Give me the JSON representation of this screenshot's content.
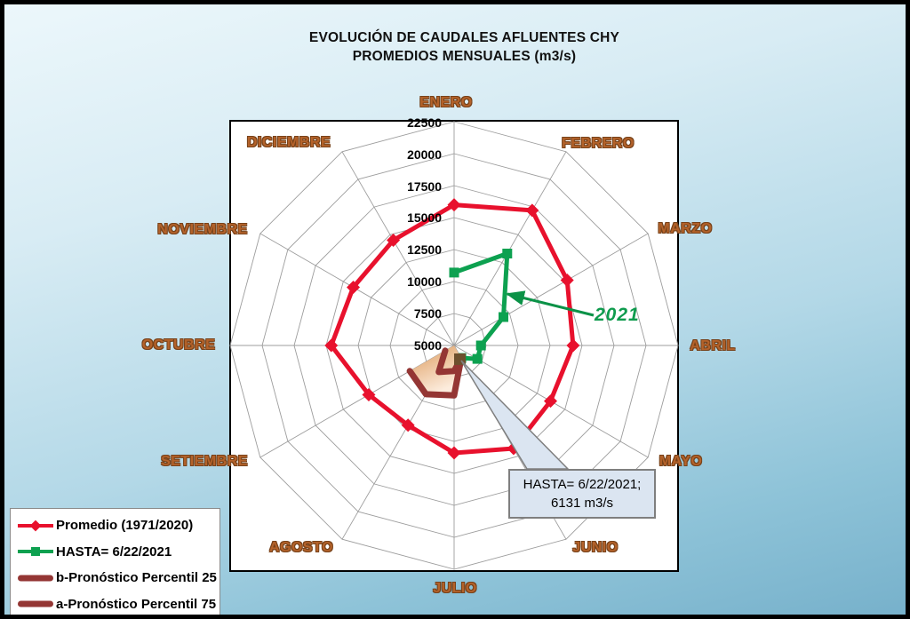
{
  "title": {
    "line1": "EVOLUCIÓN DE CAUDALES AFLUENTES CHY",
    "line2": "PROMEDIOS MENSUALES (m3/s)"
  },
  "annotation_2021": "2021",
  "callout": {
    "line1": "HASTA= 6/22/2021;",
    "line2": "6131 m3/s"
  },
  "legend": {
    "items": [
      {
        "label": "Promedio (1971/2020)"
      },
      {
        "label": "HASTA= 6/22/2021"
      },
      {
        "label": "b-Pronóstico Percentil 25"
      },
      {
        "label": "a-Pronóstico Percentil 75"
      }
    ]
  },
  "colors": {
    "promedio_red": "#e8112d",
    "hasta_green": "#0da150",
    "pronostico_maroon": "#943634",
    "month_label_brown": "#b4622a",
    "callout_fill": "#dbe5f1",
    "background_blue": "#8ec3d8",
    "panel_white": "#ffffff",
    "grid_gray": "#9d9d9d"
  },
  "chart_data": {
    "type": "radar",
    "title": "EVOLUCIÓN DE CAUDALES AFLUENTES CHY",
    "subtitle": "PROMEDIOS MENSUALES (m3/s)",
    "categories": [
      "ENERO",
      "FEBRERO",
      "MARZO",
      "ABRIL",
      "MAYO",
      "JUNIO",
      "JULIO",
      "AGOSTO",
      "SETIEMBRE",
      "OCTUBRE",
      "NOVIEMBRE",
      "DICIEMBRE"
    ],
    "radial_axis": {
      "min": 5000,
      "max": 22500,
      "step": 2500,
      "ticks": [
        22500,
        20000,
        17500,
        15000,
        12500,
        10000,
        7500,
        5000
      ],
      "units": "m3/s"
    },
    "grid": "polygon-web",
    "legend_position": "bottom-left",
    "series": [
      {
        "name": "Promedio (1971/2020)",
        "color": "#e8112d",
        "marker": "diamond",
        "closed": true,
        "months": [
          "ENERO",
          "FEBRERO",
          "MARZO",
          "ABRIL",
          "MAYO",
          "JUNIO",
          "JULIO",
          "AGOSTO",
          "SETIEMBRE",
          "OCTUBRE",
          "NOVIEMBRE",
          "DICIEMBRE"
        ],
        "values": [
          16000,
          17200,
          15200,
          14300,
          13700,
          14300,
          13400,
          12200,
          12700,
          14600,
          14100,
          14500
        ]
      },
      {
        "name": "HASTA= 6/22/2021",
        "color": "#0da150",
        "marker": "square",
        "closed": false,
        "months": [
          "ENERO",
          "FEBRERO",
          "MARZO",
          "ABRIL",
          "MAYO",
          "JUNIO"
        ],
        "values": [
          10700,
          13300,
          9450,
          7100,
          7100,
          6131
        ]
      },
      {
        "name": "b-Pronóstico Percentil 25",
        "color": "#943634",
        "marker": "none",
        "closed": false,
        "months": [
          "JUNIO",
          "JULIO",
          "AGOSTO",
          "SETIEMBRE"
        ],
        "values": [
          6131,
          7000,
          7400,
          5800
        ]
      },
      {
        "name": "a-Pronóstico Percentil 75",
        "color": "#943634",
        "marker": "none",
        "closed": false,
        "months": [
          "JUNIO",
          "JULIO",
          "AGOSTO",
          "SETIEMBRE"
        ],
        "values": [
          6131,
          8900,
          9400,
          9000
        ]
      }
    ],
    "annotations": [
      {
        "text": "2021",
        "color": "#0e9b4d",
        "points_to_series": "HASTA= 6/22/2021"
      },
      {
        "text": "HASTA= 6/22/2021; 6131 m3/s",
        "type": "callout",
        "points_to": "JUNIO value 6131"
      }
    ]
  }
}
